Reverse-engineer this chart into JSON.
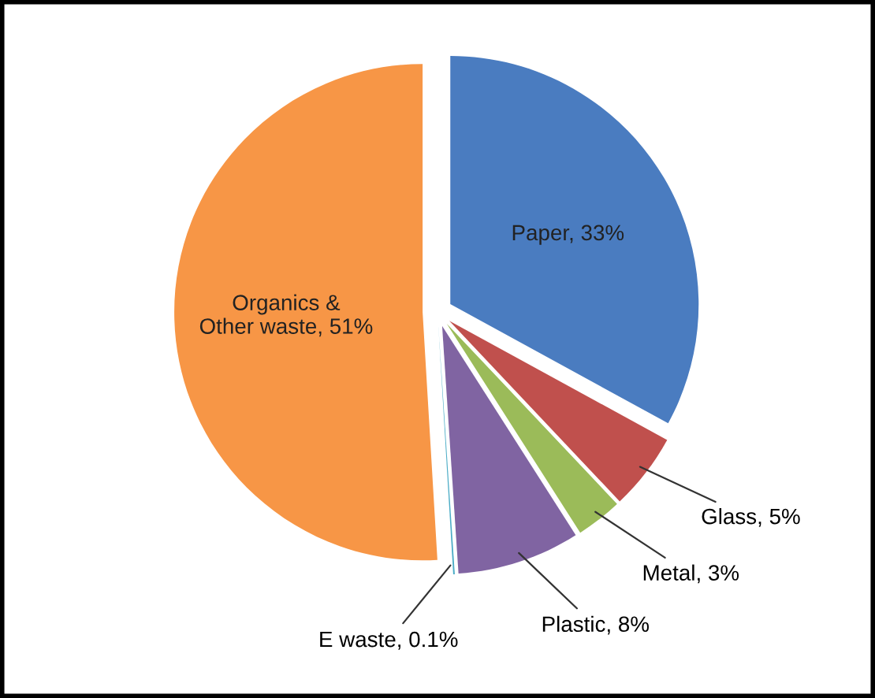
{
  "chart_data": {
    "type": "pie",
    "categories": [
      "Paper",
      "Glass",
      "Metal",
      "Plastic",
      "E waste",
      "Organics &\nOther waste"
    ],
    "values": [
      33,
      5,
      3,
      8,
      0.1,
      51
    ],
    "value_labels": [
      "33%",
      "5%",
      "3%",
      "8%",
      "0.1%",
      "51%"
    ],
    "colors": [
      "#4a7cc0",
      "#c0504d",
      "#9bbb59",
      "#8064a2",
      "#4bacc6",
      "#f79646"
    ],
    "legend": false
  }
}
